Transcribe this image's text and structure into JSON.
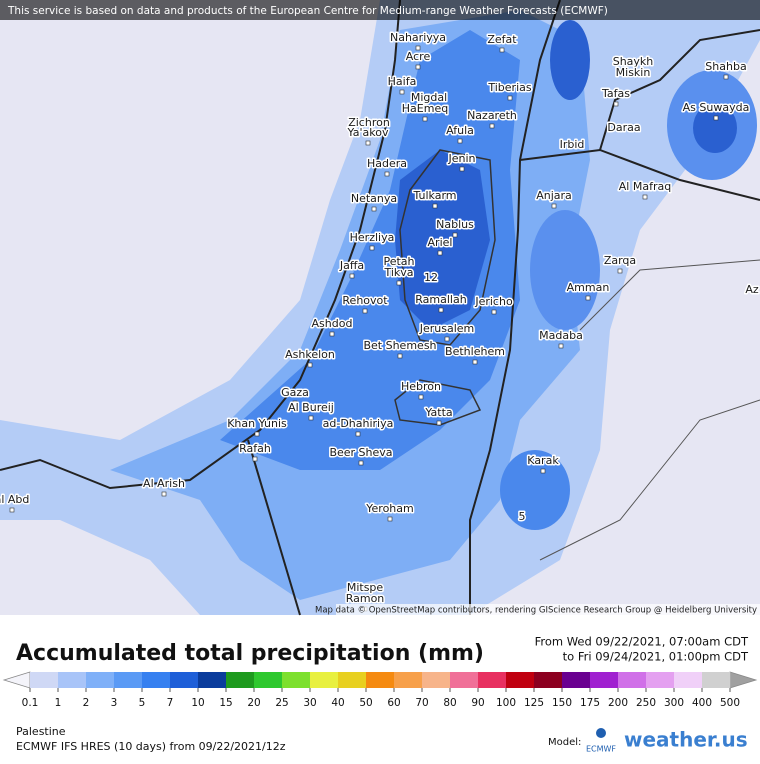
{
  "header": {
    "notice": "This service is based on data and products of the European Centre for Medium-range Weather Forecasts (ECMWF)"
  },
  "map": {
    "places": [
      "Nahariyya",
      "Zefat",
      "Acre",
      "Shaykh",
      "Miskin",
      "Shahba",
      "Haifa",
      "Tiberias",
      "Tafas",
      "Migdal",
      "HaEmeq",
      "Nazareth",
      "As Suwayda",
      "Zichron",
      "Ya'akov",
      "Afula",
      "Daraa",
      "Irbid",
      "Jenin",
      "Hadera",
      "Al Mafraq",
      "Tulkarm",
      "Anjara",
      "Netanya",
      "Nablus",
      "Herzliya",
      "Ariel",
      "Petah",
      "Tikva",
      "Jaffa",
      "Zarqa",
      "12",
      "Amman",
      "Rehovot",
      "Ramallah",
      "Jericho",
      "Ashdod",
      "Jerusalem",
      "Madaba",
      "Bet Shemesh",
      "Ashkelon",
      "Bethlehem",
      "Hebron",
      "Gaza",
      "Al Bureij",
      "Yatta",
      "Khan Yunis",
      "ad-Dhahiriya",
      "Rafah",
      "Beer Sheva",
      "Karak",
      "Al Arish",
      "Yeroham",
      "5",
      "Mitspe",
      "Ramon",
      "al Abd",
      "Az"
    ],
    "attribution": "Map data © OpenStreetMap contributors, rendering GIScience Research Group @ Heidelberg University"
  },
  "legend": {
    "title": "Accumulated total precipitation (mm)",
    "period_from": "From Wed 09/22/2021, 07:00am CDT",
    "period_to": "to Fri 09/24/2021, 01:00pm CDT",
    "labels": [
      "0.1",
      "1",
      "2",
      "3",
      "5",
      "7",
      "10",
      "15",
      "20",
      "25",
      "30",
      "40",
      "50",
      "60",
      "70",
      "80",
      "90",
      "100",
      "125",
      "150",
      "175",
      "200",
      "250",
      "300",
      "400",
      "500"
    ],
    "colors": [
      "#cfd8f5",
      "#a8c4f8",
      "#7fb0f8",
      "#5a9af5",
      "#3680f0",
      "#1e5fd8",
      "#0a3c9c",
      "#1e9a1e",
      "#2ec82e",
      "#7de02e",
      "#e8f040",
      "#e8d020",
      "#f58a10",
      "#f7a04a",
      "#f7b48a",
      "#f07098",
      "#e83060",
      "#c00010",
      "#8c0020",
      "#6a0090",
      "#a020d0",
      "#d070e8",
      "#e4a0f0",
      "#f0d0f8",
      "#d0d0d0"
    ],
    "below_color": "#f4f4fa",
    "above_color": "#a0a0a0"
  },
  "footer": {
    "region": "Palestine",
    "model_run": "ECMWF IFS HRES (10 days) from 09/22/2021/12z",
    "model_label": "Model:",
    "model_logo": "ECMWF",
    "brand": "weather.us"
  }
}
